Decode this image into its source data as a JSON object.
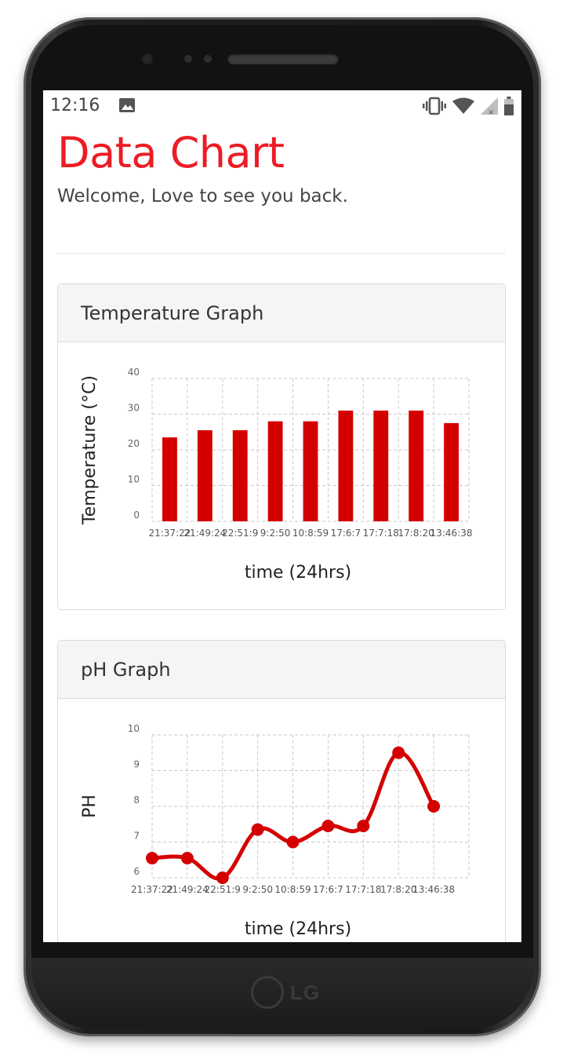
{
  "status_bar": {
    "time": "12:16",
    "icons": [
      "image-icon",
      "vibrate-icon",
      "wifi-icon",
      "signal-icon",
      "battery-icon"
    ]
  },
  "page": {
    "title": "Data Chart",
    "welcome": "Welcome, Love to see you back."
  },
  "device": {
    "brand": "LG"
  },
  "colors": {
    "accent": "#ed1c24",
    "series": "#d40000"
  },
  "temperature_panel": {
    "heading": "Temperature Graph"
  },
  "ph_panel": {
    "heading": "pH Graph"
  },
  "chart_data": [
    {
      "type": "bar",
      "title": "",
      "xlabel": "time (24hrs)",
      "ylabel": "Temperature (°C)",
      "ylim": [
        0,
        40
      ],
      "yticks": [
        0,
        10,
        20,
        30,
        40
      ],
      "grid": true,
      "categories": [
        "21:37:22",
        "21:49:24",
        "22:51:9",
        "9:2:50",
        "10:8:59",
        "17:6:7",
        "17:7:18",
        "17:8:20",
        "13:46:38"
      ],
      "values": [
        23.5,
        25.5,
        25.5,
        28,
        28,
        31,
        31,
        31,
        27.5
      ]
    },
    {
      "type": "line",
      "title": "",
      "xlabel": "time (24hrs)",
      "ylabel": "PH",
      "ylim": [
        6,
        10
      ],
      "yticks": [
        6,
        7,
        8,
        9,
        10
      ],
      "grid": true,
      "categories": [
        "21:37:22",
        "21:49:24",
        "22:51:9",
        "9:2:50",
        "10:8:59",
        "17:6:7",
        "17:7:18",
        "17:8:20",
        "13:46:38"
      ],
      "values": [
        6.55,
        6.55,
        6.0,
        7.35,
        7.0,
        7.45,
        7.45,
        9.5,
        8.0
      ]
    }
  ]
}
